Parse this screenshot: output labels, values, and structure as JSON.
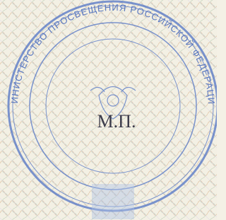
{
  "stamp": {
    "ring_text": "МИНИСТЕРСТВО ПРОСВЕЩЕНИЯ РОССИЙСКОЙ ФЕДЕРАЦИИ"
  },
  "seal_mark": "М.П."
}
